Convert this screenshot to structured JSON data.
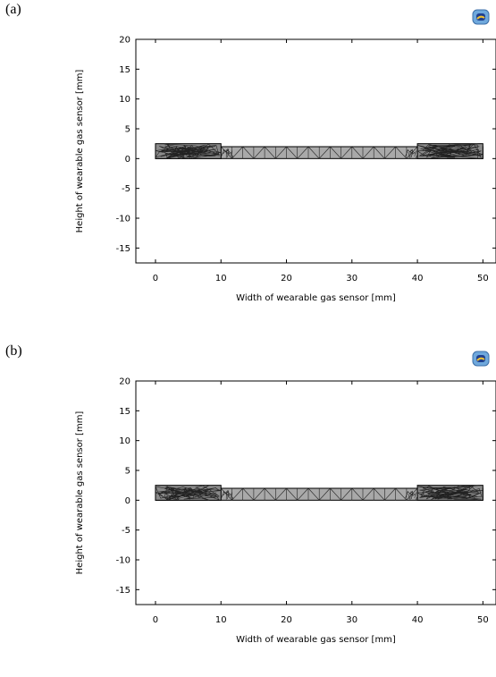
{
  "panels": [
    {
      "label": "(a)",
      "logo_icon": "comsol-logo-icon",
      "chart_data": {
        "type": "mesh-geometry",
        "xlabel": "Width of wearable gas sensor [mm]",
        "ylabel": "Height of wearable gas sensor [mm]",
        "xlim": [
          -3,
          52
        ],
        "ylim": [
          -17.5,
          20
        ],
        "x_ticks": [
          0,
          10,
          20,
          30,
          40,
          50
        ],
        "y_ticks": [
          20,
          15,
          10,
          5,
          0,
          -5,
          -10,
          -15
        ],
        "substrate": {
          "x": [
            0,
            50
          ],
          "y": [
            0,
            2
          ]
        },
        "electrodes": [
          {
            "x": [
              0,
              10
            ],
            "y": [
              0,
              2.5
            ]
          },
          {
            "x": [
              40,
              50
            ],
            "y": [
              0,
              2.5
            ]
          }
        ],
        "colors": {
          "substrate": "#a9a9a9",
          "mesh": "#222222",
          "electrode": "#8a8a8a"
        }
      }
    },
    {
      "label": "(b)",
      "logo_icon": "comsol-logo-icon",
      "chart_data": {
        "type": "mesh-geometry",
        "xlabel": "Width of wearable gas sensor [mm]",
        "ylabel": "Height of wearable gas sensor [mm]",
        "xlim": [
          -3,
          52
        ],
        "ylim": [
          -17.5,
          20
        ],
        "x_ticks": [
          0,
          10,
          20,
          30,
          40,
          50
        ],
        "y_ticks": [
          20,
          15,
          10,
          5,
          0,
          -5,
          -10,
          -15
        ],
        "substrate": {
          "x": [
            0,
            50
          ],
          "y": [
            0,
            2
          ]
        },
        "electrodes": [
          {
            "x": [
              0,
              10
            ],
            "y": [
              0,
              2.5
            ]
          },
          {
            "x": [
              40,
              50
            ],
            "y": [
              0,
              2.5
            ]
          }
        ],
        "colors": {
          "substrate": "#a9a9a9",
          "mesh": "#222222",
          "electrode": "#8a8a8a"
        }
      }
    }
  ]
}
